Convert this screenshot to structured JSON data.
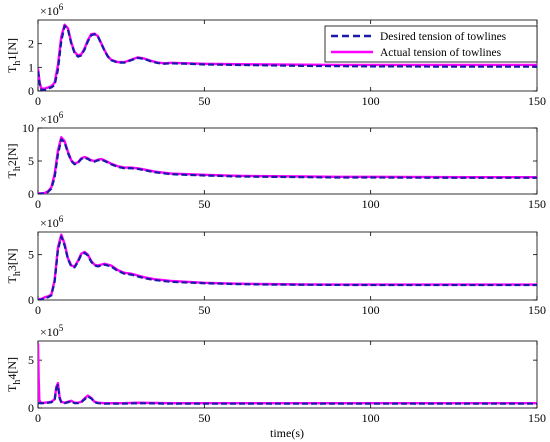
{
  "colors": {
    "desired": "#1a1aa8",
    "actual": "#ff00ff",
    "axis": "#000000",
    "background": "#ffffff"
  },
  "legend": {
    "position": "top-right of first panel",
    "entries": [
      "Desired tension of towlines",
      "Actual tension of towlines"
    ]
  },
  "xlabel": "time(s)",
  "chart_data": [
    {
      "type": "line",
      "ylabel_main": "T",
      "ylabel_sub": "h",
      "ylabel_rest": "1[N]",
      "exponent_prefix": "×10",
      "exponent_power": "6",
      "xlim": [
        0,
        150
      ],
      "ylim": [
        0,
        3
      ],
      "xticks": [
        "0",
        "50",
        "100",
        "150"
      ],
      "yticks": [
        "0",
        "1",
        "2"
      ],
      "ytick_values": [
        0,
        1,
        2
      ],
      "series": [
        {
          "name": "Desired tension of towlines",
          "style": "dashed",
          "x": [
            0,
            0.5,
            1,
            2,
            3,
            4,
            5,
            6,
            7,
            8,
            9,
            10,
            11,
            12,
            13,
            14,
            15,
            16,
            17,
            18,
            19,
            20,
            21,
            22,
            24,
            26,
            28,
            30,
            32,
            34,
            36,
            38,
            40,
            45,
            50,
            60,
            70,
            80,
            90,
            100,
            110,
            120,
            130,
            140,
            150
          ],
          "y": [
            0.85,
            0.3,
            0.05,
            0.05,
            0.1,
            0.15,
            0.25,
            0.9,
            2.1,
            2.75,
            2.6,
            2.0,
            1.6,
            1.45,
            1.5,
            1.75,
            2.1,
            2.35,
            2.4,
            2.3,
            2.0,
            1.7,
            1.45,
            1.3,
            1.2,
            1.2,
            1.3,
            1.4,
            1.35,
            1.25,
            1.18,
            1.15,
            1.17,
            1.15,
            1.12,
            1.1,
            1.08,
            1.06,
            1.05,
            1.04,
            1.04,
            1.03,
            1.03,
            1.03,
            1.03
          ]
        },
        {
          "name": "Actual tension of towlines",
          "style": "solid",
          "x": [
            0,
            0.5,
            1,
            2,
            3,
            4,
            5,
            6,
            7,
            8,
            9,
            10,
            11,
            12,
            13,
            14,
            15,
            16,
            17,
            18,
            19,
            20,
            21,
            22,
            24,
            26,
            28,
            30,
            32,
            34,
            36,
            38,
            40,
            45,
            50,
            60,
            70,
            80,
            90,
            100,
            110,
            120,
            130,
            140,
            150
          ],
          "y": [
            0.95,
            0.35,
            0.1,
            0.1,
            0.15,
            0.2,
            0.35,
            1.1,
            2.3,
            2.8,
            2.65,
            2.05,
            1.65,
            1.5,
            1.55,
            1.8,
            2.15,
            2.4,
            2.42,
            2.32,
            2.02,
            1.72,
            1.47,
            1.32,
            1.22,
            1.22,
            1.32,
            1.42,
            1.37,
            1.27,
            1.2,
            1.17,
            1.19,
            1.17,
            1.15,
            1.13,
            1.12,
            1.11,
            1.1,
            1.1,
            1.1,
            1.1,
            1.1,
            1.1,
            1.1
          ]
        }
      ]
    },
    {
      "type": "line",
      "ylabel_main": "T",
      "ylabel_sub": "h",
      "ylabel_rest": "2[N]",
      "exponent_prefix": "×10",
      "exponent_power": "6",
      "xlim": [
        0,
        150
      ],
      "ylim": [
        0,
        10
      ],
      "xticks": [
        "0",
        "50",
        "100",
        "150"
      ],
      "yticks": [
        "0",
        "5",
        "10"
      ],
      "ytick_values": [
        0,
        5,
        10
      ],
      "series": [
        {
          "name": "Desired tension of towlines",
          "style": "dashed",
          "x": [
            0,
            1,
            2,
            3,
            4,
            5,
            6,
            7,
            8,
            9,
            10,
            11,
            12,
            13,
            14,
            15,
            16,
            17,
            18,
            19,
            20,
            22,
            24,
            26,
            28,
            30,
            32,
            35,
            40,
            50,
            60,
            70,
            80,
            90,
            100,
            110,
            120,
            130,
            140,
            150
          ],
          "y": [
            0,
            0.05,
            0.1,
            0.3,
            0.8,
            2.5,
            6.0,
            8.3,
            7.8,
            6.2,
            5.0,
            4.5,
            4.7,
            5.3,
            5.5,
            5.3,
            5.0,
            4.9,
            5.1,
            5.2,
            5.0,
            4.5,
            4.1,
            3.9,
            3.9,
            3.8,
            3.6,
            3.3,
            3.0,
            2.8,
            2.65,
            2.6,
            2.55,
            2.5,
            2.5,
            2.48,
            2.46,
            2.45,
            2.45,
            2.45
          ]
        },
        {
          "name": "Actual tension of towlines",
          "style": "solid",
          "x": [
            0,
            1,
            2,
            3,
            4,
            5,
            6,
            7,
            8,
            9,
            10,
            11,
            12,
            13,
            14,
            15,
            16,
            17,
            18,
            19,
            20,
            22,
            24,
            26,
            28,
            30,
            32,
            35,
            40,
            50,
            60,
            70,
            80,
            90,
            100,
            110,
            120,
            130,
            140,
            150
          ],
          "y": [
            0.1,
            0.1,
            0.15,
            0.4,
            1.0,
            3.0,
            6.6,
            8.6,
            8.0,
            6.4,
            5.1,
            4.6,
            4.8,
            5.4,
            5.6,
            5.4,
            5.1,
            5.0,
            5.2,
            5.3,
            5.1,
            4.6,
            4.2,
            4.0,
            4.0,
            3.9,
            3.7,
            3.4,
            3.1,
            2.9,
            2.75,
            2.7,
            2.65,
            2.6,
            2.6,
            2.58,
            2.56,
            2.55,
            2.55,
            2.55
          ]
        }
      ]
    },
    {
      "type": "line",
      "ylabel_main": "T",
      "ylabel_sub": "h",
      "ylabel_rest": "3[N]",
      "exponent_prefix": "×10",
      "exponent_power": "6",
      "xlim": [
        0,
        150
      ],
      "ylim": [
        0,
        7.5
      ],
      "xticks": [
        "0",
        "50",
        "100",
        "150"
      ],
      "yticks": [
        "0",
        "5"
      ],
      "ytick_values": [
        0,
        5
      ],
      "series": [
        {
          "name": "Desired tension of towlines",
          "style": "dashed",
          "x": [
            0,
            1,
            2,
            3,
            4,
            5,
            6,
            7,
            8,
            9,
            10,
            11,
            12,
            13,
            14,
            15,
            16,
            17,
            18,
            19,
            20,
            22,
            24,
            26,
            28,
            30,
            32,
            35,
            40,
            50,
            60,
            70,
            80,
            90,
            100,
            110,
            120,
            130,
            140,
            150
          ],
          "y": [
            0,
            0.05,
            0.2,
            0.3,
            0.5,
            2.0,
            5.5,
            7.0,
            6.0,
            4.5,
            3.7,
            3.6,
            4.2,
            5.0,
            5.2,
            4.9,
            4.2,
            3.8,
            3.7,
            3.8,
            3.9,
            3.7,
            3.2,
            2.9,
            2.8,
            2.6,
            2.4,
            2.2,
            2.0,
            1.85,
            1.75,
            1.7,
            1.68,
            1.66,
            1.65,
            1.65,
            1.65,
            1.65,
            1.65,
            1.65
          ]
        },
        {
          "name": "Actual tension of towlines",
          "style": "solid",
          "x": [
            0,
            1,
            2,
            3,
            4,
            5,
            6,
            7,
            8,
            9,
            10,
            11,
            12,
            13,
            14,
            15,
            16,
            17,
            18,
            19,
            20,
            22,
            24,
            26,
            28,
            30,
            32,
            35,
            40,
            50,
            60,
            70,
            80,
            90,
            100,
            110,
            120,
            130,
            140,
            150
          ],
          "y": [
            0.1,
            0.1,
            0.3,
            0.4,
            0.6,
            2.2,
            5.8,
            7.2,
            6.2,
            4.6,
            3.8,
            3.7,
            4.3,
            5.1,
            5.3,
            5.0,
            4.3,
            3.9,
            3.8,
            3.9,
            4.0,
            3.8,
            3.3,
            3.0,
            2.9,
            2.7,
            2.5,
            2.3,
            2.1,
            1.9,
            1.8,
            1.75,
            1.72,
            1.7,
            1.7,
            1.7,
            1.7,
            1.7,
            1.7,
            1.7
          ]
        }
      ]
    },
    {
      "type": "line",
      "ylabel_main": "T",
      "ylabel_sub": "h",
      "ylabel_rest": "4[N]",
      "exponent_prefix": "×10",
      "exponent_power": "5",
      "xlim": [
        0,
        150
      ],
      "ylim": [
        0,
        7
      ],
      "xticks": [
        "0",
        "50",
        "100",
        "150"
      ],
      "yticks": [
        "0",
        "5"
      ],
      "ytick_values": [
        0,
        5
      ],
      "series": [
        {
          "name": "Desired tension of towlines",
          "style": "dashed",
          "x": [
            0,
            1,
            2,
            3,
            4,
            5,
            5.5,
            6,
            6.5,
            7,
            8,
            9,
            10,
            11,
            12,
            13,
            14,
            15,
            16,
            17,
            18,
            20,
            25,
            30,
            40,
            50,
            60,
            70,
            80,
            90,
            100,
            110,
            120,
            130,
            140,
            150
          ],
          "y": [
            0.5,
            0.5,
            0.5,
            0.55,
            0.6,
            0.8,
            2.0,
            2.4,
            1.0,
            0.6,
            0.5,
            0.6,
            0.7,
            0.5,
            0.5,
            0.6,
            0.9,
            1.2,
            1.0,
            0.6,
            0.5,
            0.45,
            0.45,
            0.5,
            0.45,
            0.45,
            0.45,
            0.45,
            0.45,
            0.45,
            0.45,
            0.45,
            0.45,
            0.45,
            0.45,
            0.45
          ]
        },
        {
          "name": "Actual tension of towlines",
          "style": "solid",
          "x": [
            0,
            0.2,
            0.4,
            1,
            2,
            3,
            4,
            5,
            5.5,
            6,
            6.5,
            7,
            8,
            9,
            10,
            11,
            12,
            13,
            14,
            15,
            16,
            17,
            18,
            20,
            25,
            30,
            40,
            50,
            60,
            70,
            80,
            90,
            100,
            110,
            120,
            130,
            140,
            150
          ],
          "y": [
            6.8,
            3.0,
            0.8,
            0.5,
            0.55,
            0.6,
            0.65,
            0.9,
            2.2,
            2.6,
            1.1,
            0.65,
            0.55,
            0.65,
            0.75,
            0.55,
            0.55,
            0.65,
            1.0,
            1.3,
            1.05,
            0.65,
            0.55,
            0.5,
            0.5,
            0.55,
            0.5,
            0.5,
            0.5,
            0.5,
            0.5,
            0.5,
            0.5,
            0.5,
            0.5,
            0.5,
            0.5,
            0.5
          ]
        }
      ]
    }
  ]
}
